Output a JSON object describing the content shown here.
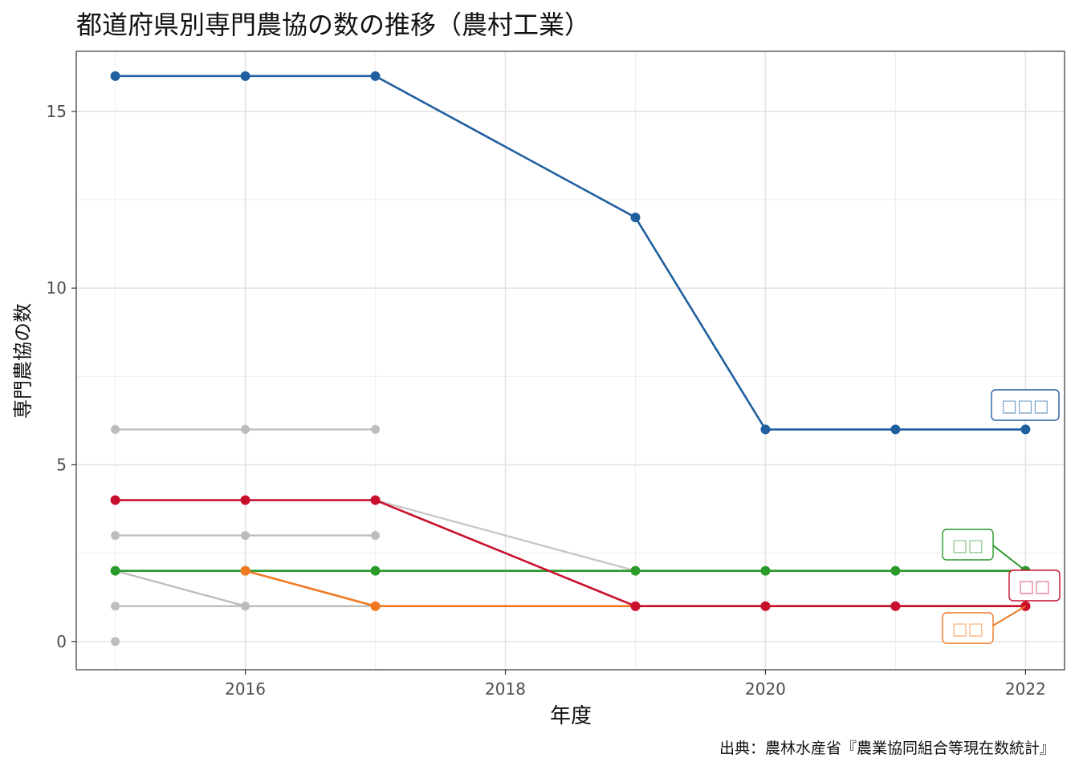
{
  "chart_data": {
    "type": "line",
    "title": "都道府県別専門農協の数の推移（農村工業）",
    "xlabel": "年度",
    "ylabel": "専門農協の数",
    "caption": "出典：農林水産省『農業協同組合等現在数統計』",
    "x_ticks": [
      "2016",
      "2018",
      "2020",
      "2022"
    ],
    "y_ticks": [
      "0",
      "5",
      "10",
      "15"
    ],
    "xlim": [
      2014.7,
      2022.3
    ],
    "ylim": [
      -0.8,
      16.7
    ],
    "grid": true,
    "background_series": [
      {
        "color": "#bdbdbd",
        "points": [
          [
            2015,
            6
          ],
          [
            2016,
            6
          ],
          [
            2017,
            6
          ]
        ]
      },
      {
        "color": "#bdbdbd",
        "points": [
          [
            2015,
            3
          ],
          [
            2016,
            3
          ],
          [
            2017,
            3
          ]
        ]
      },
      {
        "color": "#bdbdbd",
        "points": [
          [
            2015,
            1
          ],
          [
            2016,
            1
          ],
          [
            2017,
            1
          ]
        ]
      },
      {
        "color": "#bdbdbd",
        "points": [
          [
            2015,
            2
          ],
          [
            2016,
            1
          ],
          [
            2017,
            1
          ]
        ]
      },
      {
        "color": "#c8c8c8",
        "points": [
          [
            2017,
            4
          ],
          [
            2019,
            2
          ]
        ]
      },
      {
        "color": "#bdbdbd",
        "points": [
          [
            2015,
            0
          ]
        ]
      }
    ],
    "series": [
      {
        "name": "□□□",
        "color": "#1f5f9f",
        "label_color": "#1f5f9f",
        "points": [
          [
            2015,
            16
          ],
          [
            2016,
            16
          ],
          [
            2017,
            16
          ],
          [
            2019,
            12
          ],
          [
            2020,
            6
          ],
          [
            2021,
            6
          ],
          [
            2022,
            6
          ]
        ]
      },
      {
        "name": "□□",
        "color": "#2a9a2a",
        "label_color": "#2a9a2a",
        "points": [
          [
            2015,
            2
          ],
          [
            2016,
            2
          ],
          [
            2017,
            2
          ],
          [
            2019,
            2
          ],
          [
            2020,
            2
          ],
          [
            2021,
            2
          ],
          [
            2022,
            2
          ]
        ]
      },
      {
        "name": "□□",
        "color": "#c8102e",
        "label_color": "#c8102e",
        "points": [
          [
            2015,
            4
          ],
          [
            2016,
            4
          ],
          [
            2017,
            4
          ],
          [
            2019,
            1
          ],
          [
            2020,
            1
          ],
          [
            2021,
            1
          ],
          [
            2022,
            1
          ]
        ]
      },
      {
        "name": "□□",
        "color": "#f07820",
        "label_color": "#f07820",
        "points": [
          [
            2016,
            2
          ],
          [
            2017,
            1
          ],
          [
            2019,
            1
          ],
          [
            2020,
            1
          ],
          [
            2021,
            1
          ],
          [
            2022,
            1
          ]
        ]
      }
    ]
  }
}
